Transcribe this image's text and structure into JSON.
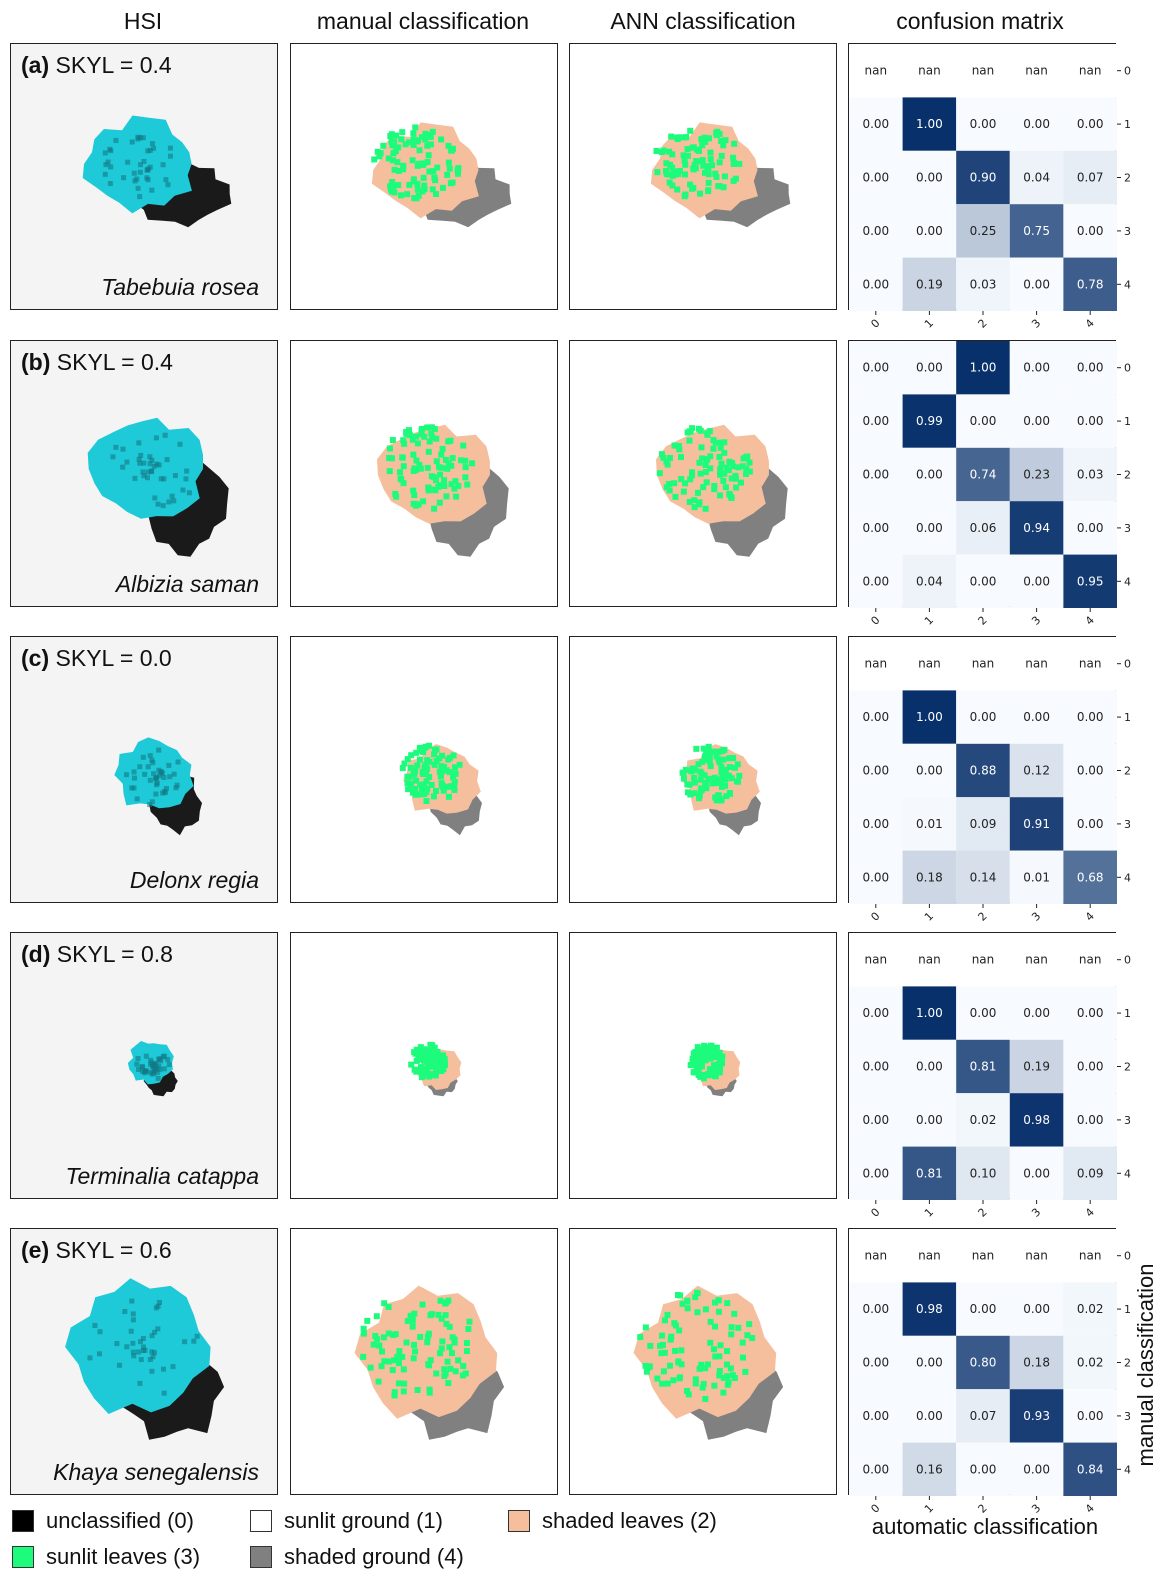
{
  "headers": {
    "hsi": "HSI",
    "manual": "manual classification",
    "ann": "ANN classification",
    "cm": "confusion matrix"
  },
  "rows": [
    {
      "letter": "(a)",
      "skyl": "SKYL = 0.4",
      "species": "Tabebuia rosea"
    },
    {
      "letter": "(b)",
      "skyl": "SKYL = 0.4",
      "species": "Albizia saman"
    },
    {
      "letter": "(c)",
      "skyl": "SKYL = 0.0",
      "species": "Delonx regia"
    },
    {
      "letter": "(d)",
      "skyl": "SKYL = 0.8",
      "species": "Terminalia catappa"
    },
    {
      "letter": "(e)",
      "skyl": "SKYL = 0.6",
      "species": "Khaya senegalensis"
    }
  ],
  "axis_labels": {
    "y": "manual classification",
    "x": "automatic classification"
  },
  "legend": [
    {
      "label": "unclassified (0)",
      "color": "#000000"
    },
    {
      "label": "sunlit ground (1)",
      "color": "#ffffff"
    },
    {
      "label": "shaded leaves (2)",
      "color": "#f5bf9d"
    },
    {
      "label": "sunlit leaves (3)",
      "color": "#1dfb7c"
    },
    {
      "label": "shaded ground (4)",
      "color": "#808080"
    }
  ],
  "colors": {
    "hsi_canopy": "#1ec9d8",
    "hsi_shadow": "#1a1a1a",
    "cm_low": "#f7fbff",
    "cm_high": "#08306b"
  },
  "chart_data": [
    {
      "type": "heatmap",
      "title": "confusion matrix",
      "panel": "(a)",
      "xlabel": "automatic classification",
      "ylabel": "manual classification",
      "x_ticks": [
        "0",
        "1",
        "2",
        "3",
        "4"
      ],
      "y_ticks": [
        "0",
        "1",
        "2",
        "3",
        "4"
      ],
      "cells": [
        [
          "nan",
          "nan",
          "nan",
          "nan",
          "nan"
        ],
        [
          "0.00",
          "1.00",
          "0.00",
          "0.00",
          "0.00"
        ],
        [
          "0.00",
          "0.00",
          "0.90",
          "0.04",
          "0.07"
        ],
        [
          "0.00",
          "0.00",
          "0.25",
          "0.75",
          "0.00"
        ],
        [
          "0.00",
          "0.19",
          "0.03",
          "0.00",
          "0.78"
        ]
      ]
    },
    {
      "type": "heatmap",
      "title": "confusion matrix",
      "panel": "(b)",
      "xlabel": "automatic classification",
      "ylabel": "manual classification",
      "x_ticks": [
        "0",
        "1",
        "2",
        "3",
        "4"
      ],
      "y_ticks": [
        "0",
        "1",
        "2",
        "3",
        "4"
      ],
      "cells": [
        [
          "0.00",
          "0.00",
          "1.00",
          "0.00",
          "0.00"
        ],
        [
          "0.00",
          "0.99",
          "0.00",
          "0.00",
          "0.00"
        ],
        [
          "0.00",
          "0.00",
          "0.74",
          "0.23",
          "0.03"
        ],
        [
          "0.00",
          "0.00",
          "0.06",
          "0.94",
          "0.00"
        ],
        [
          "0.00",
          "0.04",
          "0.00",
          "0.00",
          "0.95"
        ]
      ]
    },
    {
      "type": "heatmap",
      "title": "confusion matrix",
      "panel": "(c)",
      "xlabel": "automatic classification",
      "ylabel": "manual classification",
      "x_ticks": [
        "0",
        "1",
        "2",
        "3",
        "4"
      ],
      "y_ticks": [
        "0",
        "1",
        "2",
        "3",
        "4"
      ],
      "cells": [
        [
          "nan",
          "nan",
          "nan",
          "nan",
          "nan"
        ],
        [
          "0.00",
          "1.00",
          "0.00",
          "0.00",
          "0.00"
        ],
        [
          "0.00",
          "0.00",
          "0.88",
          "0.12",
          "0.00"
        ],
        [
          "0.00",
          "0.01",
          "0.09",
          "0.91",
          "0.00"
        ],
        [
          "0.00",
          "0.18",
          "0.14",
          "0.01",
          "0.68"
        ]
      ]
    },
    {
      "type": "heatmap",
      "title": "confusion matrix",
      "panel": "(d)",
      "xlabel": "automatic classification",
      "ylabel": "manual classification",
      "x_ticks": [
        "0",
        "1",
        "2",
        "3",
        "4"
      ],
      "y_ticks": [
        "0",
        "1",
        "2",
        "3",
        "4"
      ],
      "cells": [
        [
          "nan",
          "nan",
          "nan",
          "nan",
          "nan"
        ],
        [
          "0.00",
          "1.00",
          "0.00",
          "0.00",
          "0.00"
        ],
        [
          "0.00",
          "0.00",
          "0.81",
          "0.19",
          "0.00"
        ],
        [
          "0.00",
          "0.00",
          "0.02",
          "0.98",
          "0.00"
        ],
        [
          "0.00",
          "0.81",
          "0.10",
          "0.00",
          "0.09"
        ]
      ]
    },
    {
      "type": "heatmap",
      "title": "confusion matrix",
      "panel": "(e)",
      "xlabel": "automatic classification",
      "ylabel": "manual classification",
      "x_ticks": [
        "0",
        "1",
        "2",
        "3",
        "4"
      ],
      "y_ticks": [
        "0",
        "1",
        "2",
        "3",
        "4"
      ],
      "cells": [
        [
          "nan",
          "nan",
          "nan",
          "nan",
          "nan"
        ],
        [
          "0.00",
          "0.98",
          "0.00",
          "0.00",
          "0.02"
        ],
        [
          "0.00",
          "0.00",
          "0.80",
          "0.18",
          "0.02"
        ],
        [
          "0.00",
          "0.00",
          "0.07",
          "0.93",
          "0.00"
        ],
        [
          "0.00",
          "0.16",
          "0.00",
          "0.00",
          "0.84"
        ]
      ]
    }
  ]
}
